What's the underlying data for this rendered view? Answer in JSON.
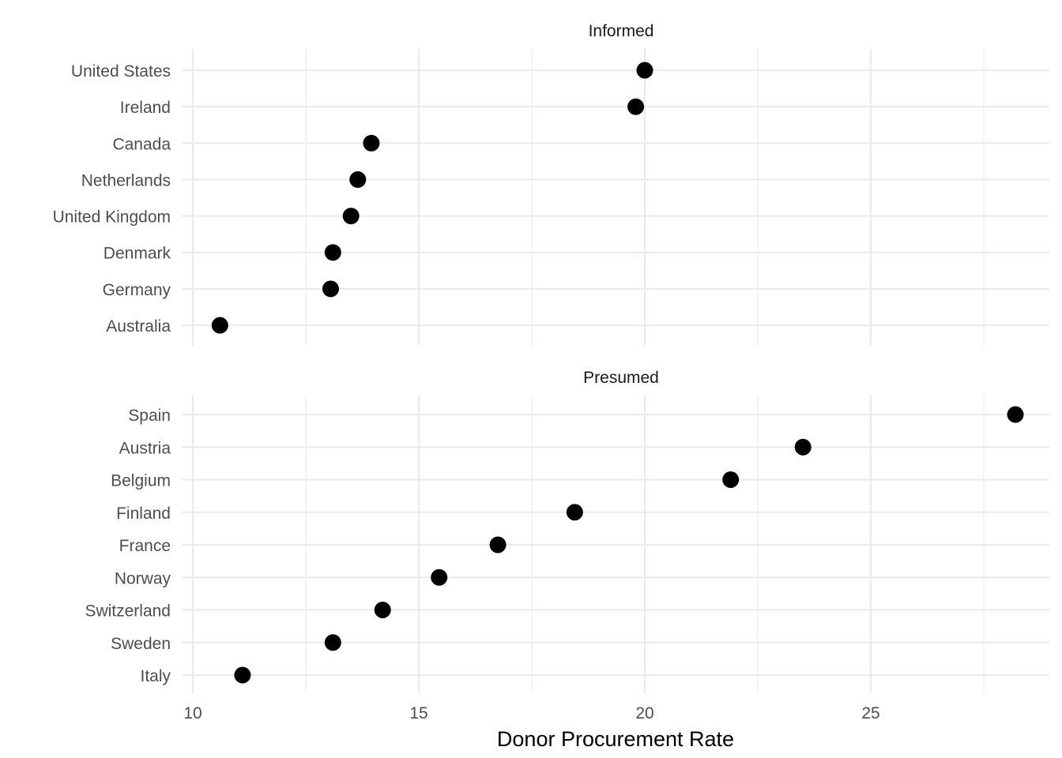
{
  "chart_data": {
    "type": "scatter",
    "xlabel": "Donor Procurement Rate",
    "xlim": [
      10,
      28.5
    ],
    "x_ticks": [
      10,
      15,
      20,
      25
    ],
    "x_tick_labels": [
      "10",
      "15",
      "20",
      "25"
    ],
    "x_minor_ticks": [
      12.5,
      17.5,
      22.5,
      27.5
    ],
    "grid": true,
    "point_color": "#000000",
    "panels": [
      {
        "title": "Informed",
        "categories": [
          "United States",
          "Ireland",
          "Canada",
          "Netherlands",
          "United Kingdom",
          "Denmark",
          "Germany",
          "Australia"
        ],
        "values": [
          20.0,
          19.8,
          13.95,
          13.65,
          13.5,
          13.1,
          13.05,
          10.6
        ]
      },
      {
        "title": "Presumed",
        "categories": [
          "Spain",
          "Austria",
          "Belgium",
          "Finland",
          "France",
          "Norway",
          "Switzerland",
          "Sweden",
          "Italy"
        ],
        "values": [
          28.2,
          23.5,
          21.9,
          18.45,
          16.75,
          15.45,
          14.2,
          13.1,
          11.1
        ]
      }
    ]
  }
}
